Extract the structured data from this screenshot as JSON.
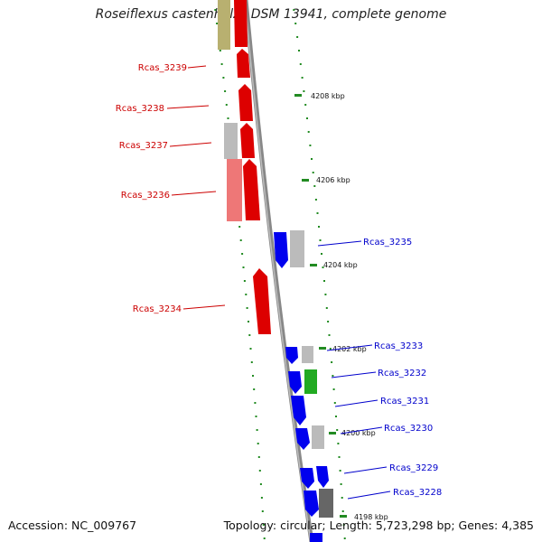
{
  "title": "Roseiflexus castenholzii DSM 13941, complete genome",
  "footer": {
    "accession": "Accession: NC_009767",
    "summary": "Topology: circular; Length: 5,723,298 bp; Genes: 4,385"
  },
  "colors": {
    "reverse_strand": "#dd0000",
    "forward_strand": "#0000ee",
    "rna": "#22aa22",
    "other": "#bbbbbb",
    "dark_gray": "#666666",
    "tan": "#b8b070",
    "backbone": "#888888",
    "tick": "#228b22"
  },
  "ticks": [
    "4208 kbp",
    "4206 kbp",
    "4204 kbp",
    "4202 kbp",
    "4200 kbp",
    "4198 kbp"
  ],
  "genes_left": [
    "Rcas_3239",
    "Rcas_3238",
    "Rcas_3237",
    "Rcas_3236",
    "Rcas_3234"
  ],
  "genes_right": [
    "Rcas_3235",
    "Rcas_3233",
    "Rcas_3232",
    "Rcas_3231",
    "Rcas_3230",
    "Rcas_3229",
    "Rcas_3228"
  ]
}
